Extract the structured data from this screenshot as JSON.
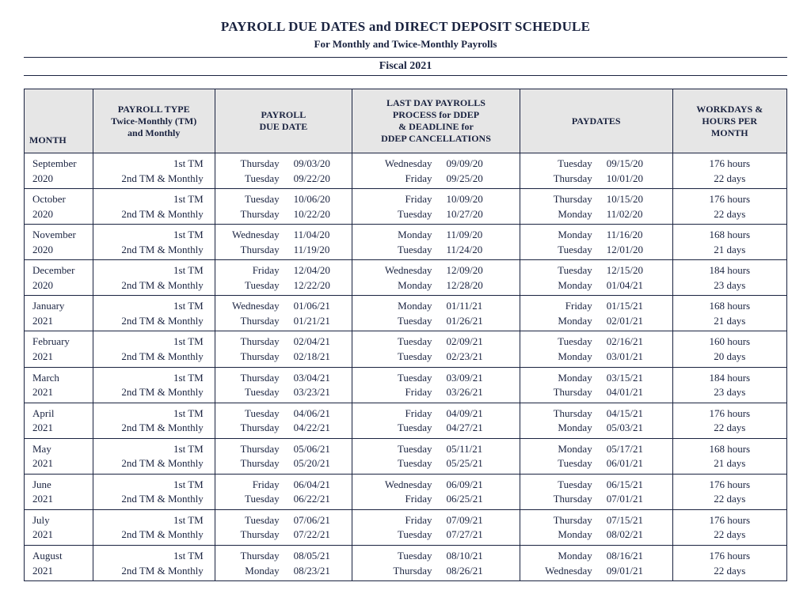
{
  "title": "PAYROLL DUE DATES and DIRECT DEPOSIT SCHEDULE",
  "subtitle": "For Monthly and Twice-Monthly Payrolls",
  "fiscal": "Fiscal 2021",
  "headers": {
    "month": "MONTH",
    "type_l1": "PAYROLL TYPE",
    "type_l2": "Twice-Monthly (TM)",
    "type_l3": "and Monthly",
    "due_l1": "PAYROLL",
    "due_l2": "DUE DATE",
    "ddep_l1": "LAST DAY PAYROLLS",
    "ddep_l2": "PROCESS for  DDEP",
    "ddep_l3": "& DEADLINE for",
    "ddep_l4": "DDEP  CANCELLATIONS",
    "pay": "PAYDATES",
    "work_l1": "WORKDAYS &",
    "work_l2": "HOURS PER",
    "work_l3": "MONTH"
  },
  "type_labels": {
    "line1": "1st TM",
    "line2": "2nd TM & Monthly"
  },
  "rows": [
    {
      "month_l1": "September",
      "month_l2": "2020",
      "due": [
        {
          "day": "Thursday",
          "date": "09/03/20"
        },
        {
          "day": "Tuesday",
          "date": "09/22/20"
        }
      ],
      "ddep": [
        {
          "day": "Wednesday",
          "date": "09/09/20"
        },
        {
          "day": "Friday",
          "date": "09/25/20"
        }
      ],
      "pay": [
        {
          "day": "Tuesday",
          "date": "09/15/20"
        },
        {
          "day": "Thursday",
          "date": "10/01/20"
        }
      ],
      "work_l1": "176 hours",
      "work_l2": "22 days"
    },
    {
      "month_l1": "October",
      "month_l2": "2020",
      "due": [
        {
          "day": "Tuesday",
          "date": "10/06/20"
        },
        {
          "day": "Thursday",
          "date": "10/22/20"
        }
      ],
      "ddep": [
        {
          "day": "Friday",
          "date": "10/09/20"
        },
        {
          "day": "Tuesday",
          "date": "10/27/20"
        }
      ],
      "pay": [
        {
          "day": "Thursday",
          "date": "10/15/20"
        },
        {
          "day": "Monday",
          "date": "11/02/20"
        }
      ],
      "work_l1": "176 hours",
      "work_l2": "22 days"
    },
    {
      "month_l1": "November",
      "month_l2": "2020",
      "due": [
        {
          "day": "Wednesday",
          "date": "11/04/20"
        },
        {
          "day": "Thursday",
          "date": "11/19/20"
        }
      ],
      "ddep": [
        {
          "day": "Monday",
          "date": "11/09/20"
        },
        {
          "day": "Tuesday",
          "date": "11/24/20"
        }
      ],
      "pay": [
        {
          "day": "Monday",
          "date": "11/16/20"
        },
        {
          "day": "Tuesday",
          "date": "12/01/20"
        }
      ],
      "work_l1": "168 hours",
      "work_l2": "21 days"
    },
    {
      "month_l1": "December",
      "month_l2": "2020",
      "due": [
        {
          "day": "Friday",
          "date": "12/04/20"
        },
        {
          "day": "Tuesday",
          "date": "12/22/20"
        }
      ],
      "ddep": [
        {
          "day": "Wednesday",
          "date": "12/09/20"
        },
        {
          "day": "Monday",
          "date": "12/28/20"
        }
      ],
      "pay": [
        {
          "day": "Tuesday",
          "date": "12/15/20"
        },
        {
          "day": "Monday",
          "date": "01/04/21"
        }
      ],
      "work_l1": "184 hours",
      "work_l2": "23 days"
    },
    {
      "month_l1": "January",
      "month_l2": "2021",
      "due": [
        {
          "day": "Wednesday",
          "date": "01/06/21"
        },
        {
          "day": "Thursday",
          "date": "01/21/21"
        }
      ],
      "ddep": [
        {
          "day": "Monday",
          "date": "01/11/21"
        },
        {
          "day": "Tuesday",
          "date": "01/26/21"
        }
      ],
      "pay": [
        {
          "day": "Friday",
          "date": "01/15/21"
        },
        {
          "day": "Monday",
          "date": "02/01/21"
        }
      ],
      "work_l1": "168 hours",
      "work_l2": "21 days"
    },
    {
      "month_l1": "February",
      "month_l2": "2021",
      "due": [
        {
          "day": "Thursday",
          "date": "02/04/21"
        },
        {
          "day": "Thursday",
          "date": "02/18/21"
        }
      ],
      "ddep": [
        {
          "day": "Tuesday",
          "date": "02/09/21"
        },
        {
          "day": "Tuesday",
          "date": "02/23/21"
        }
      ],
      "pay": [
        {
          "day": "Tuesday",
          "date": "02/16/21"
        },
        {
          "day": "Monday",
          "date": "03/01/21"
        }
      ],
      "work_l1": "160 hours",
      "work_l2": "20 days"
    },
    {
      "month_l1": "March",
      "month_l2": "2021",
      "due": [
        {
          "day": "Thursday",
          "date": "03/04/21"
        },
        {
          "day": "Tuesday",
          "date": "03/23/21"
        }
      ],
      "ddep": [
        {
          "day": "Tuesday",
          "date": "03/09/21"
        },
        {
          "day": "Friday",
          "date": "03/26/21"
        }
      ],
      "pay": [
        {
          "day": "Monday",
          "date": "03/15/21"
        },
        {
          "day": "Thursday",
          "date": "04/01/21"
        }
      ],
      "work_l1": "184 hours",
      "work_l2": "23 days"
    },
    {
      "month_l1": "April",
      "month_l2": "2021",
      "due": [
        {
          "day": "Tuesday",
          "date": "04/06/21"
        },
        {
          "day": "Thursday",
          "date": "04/22/21"
        }
      ],
      "ddep": [
        {
          "day": "Friday",
          "date": "04/09/21"
        },
        {
          "day": "Tuesday",
          "date": "04/27/21"
        }
      ],
      "pay": [
        {
          "day": "Thursday",
          "date": "04/15/21"
        },
        {
          "day": "Monday",
          "date": "05/03/21"
        }
      ],
      "work_l1": "176 hours",
      "work_l2": "22 days"
    },
    {
      "month_l1": "May",
      "month_l2": "2021",
      "due": [
        {
          "day": "Thursday",
          "date": "05/06/21"
        },
        {
          "day": "Thursday",
          "date": "05/20/21"
        }
      ],
      "ddep": [
        {
          "day": "Tuesday",
          "date": "05/11/21"
        },
        {
          "day": "Tuesday",
          "date": "05/25/21"
        }
      ],
      "pay": [
        {
          "day": "Monday",
          "date": "05/17/21"
        },
        {
          "day": "Tuesday",
          "date": "06/01/21"
        }
      ],
      "work_l1": "168 hours",
      "work_l2": "21 days"
    },
    {
      "month_l1": "June",
      "month_l2": "2021",
      "due": [
        {
          "day": "Friday",
          "date": "06/04/21"
        },
        {
          "day": "Tuesday",
          "date": "06/22/21"
        }
      ],
      "ddep": [
        {
          "day": "Wednesday",
          "date": "06/09/21"
        },
        {
          "day": "Friday",
          "date": "06/25/21"
        }
      ],
      "pay": [
        {
          "day": "Tuesday",
          "date": "06/15/21"
        },
        {
          "day": "Thursday",
          "date": "07/01/21"
        }
      ],
      "work_l1": "176 hours",
      "work_l2": "22 days"
    },
    {
      "month_l1": "July",
      "month_l2": "2021",
      "due": [
        {
          "day": "Tuesday",
          "date": "07/06/21"
        },
        {
          "day": "Thursday",
          "date": "07/22/21"
        }
      ],
      "ddep": [
        {
          "day": "Friday",
          "date": "07/09/21"
        },
        {
          "day": "Tuesday",
          "date": "07/27/21"
        }
      ],
      "pay": [
        {
          "day": "Thursday",
          "date": "07/15/21"
        },
        {
          "day": "Monday",
          "date": "08/02/21"
        }
      ],
      "work_l1": "176 hours",
      "work_l2": "22 days"
    },
    {
      "month_l1": "August",
      "month_l2": "2021",
      "due": [
        {
          "day": "Thursday",
          "date": "08/05/21"
        },
        {
          "day": "Monday",
          "date": "08/23/21"
        }
      ],
      "ddep": [
        {
          "day": "Tuesday",
          "date": "08/10/21"
        },
        {
          "day": "Thursday",
          "date": "08/26/21"
        }
      ],
      "pay": [
        {
          "day": "Monday",
          "date": "08/16/21"
        },
        {
          "day": "Wednesday",
          "date": "09/01/21"
        }
      ],
      "work_l1": "176 hours",
      "work_l2": "22 days"
    }
  ],
  "colors": {
    "text": "#1a2340",
    "header_bg": "#e6e6e6",
    "border": "#1a2340",
    "page_bg": "#ffffff"
  }
}
